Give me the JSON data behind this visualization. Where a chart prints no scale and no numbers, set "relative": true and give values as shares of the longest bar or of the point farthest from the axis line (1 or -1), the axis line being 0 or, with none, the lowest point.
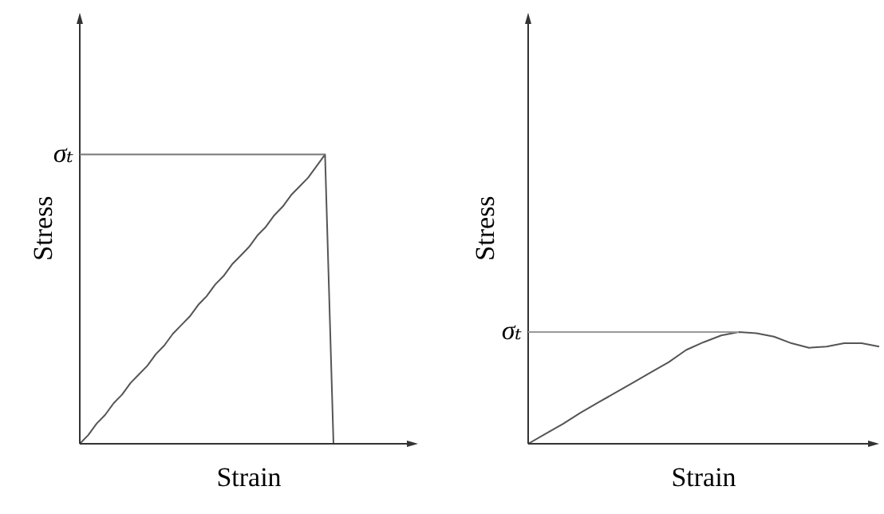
{
  "chart_data": [
    {
      "type": "line",
      "relative": true,
      "xlabel": "Strain",
      "ylabel": "Stress",
      "marker": "none",
      "categories": [
        null,
        null,
        null,
        null,
        null,
        null,
        null,
        null,
        null,
        null,
        null,
        null,
        null,
        null,
        null,
        null,
        null,
        null,
        null,
        null,
        null,
        null,
        null,
        null,
        null,
        null,
        null,
        null,
        null,
        null,
        null,
        null,
        null,
        null,
        null,
        null,
        null,
        null,
        null,
        null,
        null
      ],
      "series": [
        {
          "color": "#555555",
          "values": [
            0,
            0.03,
            0.07,
            0.1,
            0.14,
            0.17,
            0.21,
            0.24,
            0.27,
            0.31,
            0.34,
            0.38,
            0.41,
            0.44,
            0.48,
            0.51,
            0.55,
            0.58,
            0.62,
            0.65,
            0.68,
            0.72,
            0.75,
            0.79,
            0.82,
            0.86,
            0.89,
            0.92,
            0.96,
            1.0,
            0,
            null,
            null,
            null,
            null,
            null,
            null,
            null,
            null,
            null,
            null
          ]
        }
      ],
      "ref_lines": [
        {
          "axis": "y",
          "value": 1,
          "label": "σₜ",
          "color": "#777777"
        }
      ]
    },
    {
      "type": "line",
      "relative": true,
      "xlabel": "Strain",
      "ylabel": "Stress",
      "marker": "none",
      "categories": [
        null,
        null,
        null,
        null,
        null,
        null,
        null,
        null,
        null,
        null,
        null,
        null,
        null,
        null,
        null,
        null,
        null,
        null,
        null,
        null,
        null
      ],
      "series": [
        {
          "color": "#555555",
          "values": [
            0,
            0.09,
            0.18,
            0.28,
            0.37,
            0.46,
            0.55,
            0.64,
            0.73,
            0.84,
            0.91,
            0.97,
            1.0,
            0.99,
            0.96,
            0.9,
            0.86,
            0.87,
            0.9,
            0.9,
            0.87
          ]
        }
      ],
      "ref_lines": [
        {
          "axis": "y",
          "value": 1,
          "label": "σₜ",
          "color": "#999999"
        }
      ]
    }
  ]
}
